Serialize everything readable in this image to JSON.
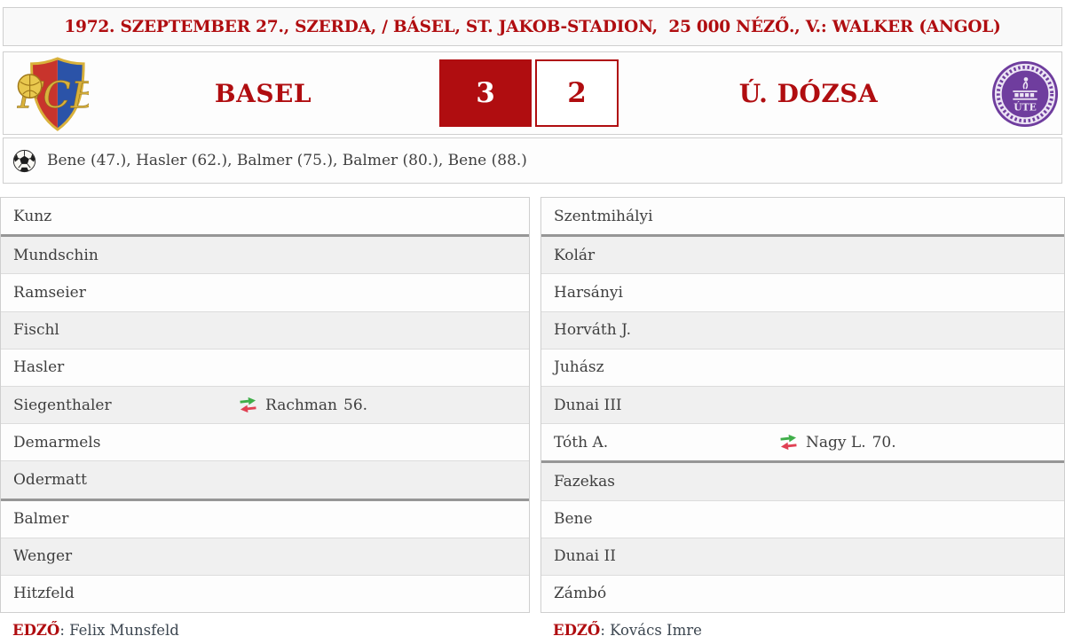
{
  "header": {
    "text": "1972. SZEPTEMBER 27., SZERDA, / BÁSEL, ST. JAKOB-STADION,  25 000 NÉZŐ., V.: WALKER (ANGOL)"
  },
  "scoreboard": {
    "home": {
      "name": "BASEL",
      "score": "3",
      "logo": "fc-basel-crest"
    },
    "away": {
      "name": "Ú. DÓZSA",
      "score": "2",
      "logo": "ujpest-dozsa-crest"
    }
  },
  "goals": {
    "icon": "football-icon",
    "text": "Bene (47.), Hasler (62.), Balmer (75.), Balmer (80.), Bene (88.)"
  },
  "lineups": {
    "home": {
      "players": [
        {
          "name": "Kunz",
          "divider_after": true
        },
        {
          "name": "Mundschin"
        },
        {
          "name": "Ramseier"
        },
        {
          "name": "Fischl"
        },
        {
          "name": "Hasler"
        },
        {
          "name": "Siegenthaler",
          "sub": {
            "name": "Rachman",
            "minute": "56."
          }
        },
        {
          "name": "Demarmels"
        },
        {
          "name": "Odermatt",
          "divider_after": true
        },
        {
          "name": "Balmer"
        },
        {
          "name": "Wenger"
        },
        {
          "name": "Hitzfeld"
        }
      ],
      "coach_label": "EDZŐ",
      "coach_name": ": Felix Munsfeld"
    },
    "away": {
      "players": [
        {
          "name": "Szentmihályi",
          "divider_after": true
        },
        {
          "name": "Kolár"
        },
        {
          "name": "Harsányi"
        },
        {
          "name": "Horváth J."
        },
        {
          "name": "Juhász"
        },
        {
          "name": "Dunai III"
        },
        {
          "name": "Tóth A.",
          "sub": {
            "name": "Nagy L.",
            "minute": "70."
          },
          "divider_after": true
        },
        {
          "name": "Fazekas"
        },
        {
          "name": "Bene"
        },
        {
          "name": "Dunai II"
        },
        {
          "name": "Zámbó"
        }
      ],
      "coach_label": "EDZŐ",
      "coach_name": ": Kovács Imre"
    }
  },
  "colors": {
    "accent": "#b00d10",
    "row_alt": "#f0f0f0",
    "row_white": "#fdfdfd",
    "section_divider": "#969696",
    "sub_in_green": "#3fae49",
    "sub_out_red": "#e04153",
    "basel_red": "#c8342c",
    "basel_blue": "#2b53a8",
    "basel_gold": "#d9b13b",
    "ujpest_purple": "#6f3d9e",
    "text_dark": "#3f3f3f"
  }
}
